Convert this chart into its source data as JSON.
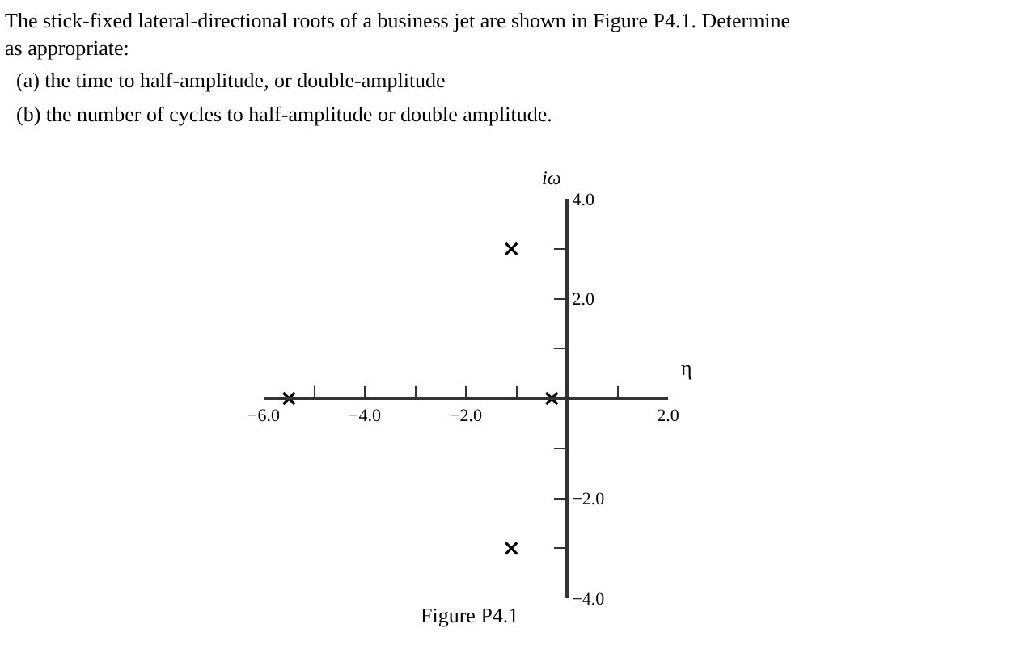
{
  "chart_data": {
    "type": "scatter",
    "title": "The stick-fixed lateral-directional roots of a business jet are shown in Figure P4.1. Determine as appropriate:",
    "annotations": [
      "(a) the time to half-amplitude, or double-amplitude",
      "(b) the number of cycles to half-amplitude or double amplitude.",
      "Figure P4.1"
    ],
    "xlabel": "η",
    "ylabel": "iω",
    "series": [
      {
        "color": "#000000",
        "x": [
          -5.5,
          -0.3,
          -1.1,
          -1.1
        ],
        "values": [
          0,
          0,
          3.0,
          -3.0
        ]
      }
    ],
    "marker": "cross",
    "xlim": [
      -6,
      2
    ],
    "ylim": [
      -4,
      4
    ],
    "xticks": [
      {
        "value": -6,
        "label": "−6.0"
      },
      {
        "value": -5,
        "label": null
      },
      {
        "value": -4,
        "label": "−4.0"
      },
      {
        "value": -3,
        "label": null
      },
      {
        "value": -2,
        "label": "−2.0"
      },
      {
        "value": -1,
        "label": null
      },
      {
        "value": 0,
        "label": null
      },
      {
        "value": 1,
        "label": null
      },
      {
        "value": 2,
        "label": "2.0"
      }
    ],
    "yticks": [
      {
        "value": -4,
        "label": "−4.0"
      },
      {
        "value": -3,
        "label": null
      },
      {
        "value": -2,
        "label": "−2.0"
      },
      {
        "value": -1,
        "label": null
      },
      {
        "value": 0,
        "label": null
      },
      {
        "value": 1,
        "label": null
      },
      {
        "value": 2,
        "label": "2.0"
      },
      {
        "value": 3,
        "label": null
      },
      {
        "value": 4,
        "label": "4.0"
      }
    ]
  }
}
